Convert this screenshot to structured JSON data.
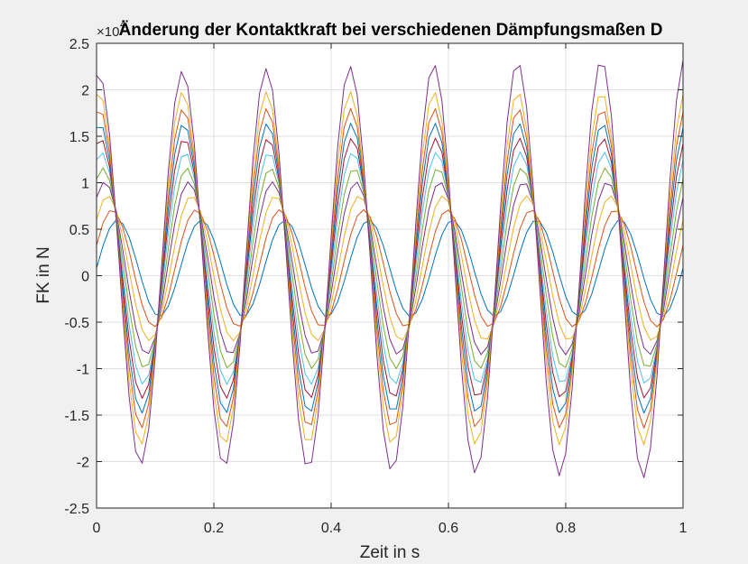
{
  "chart_data": {
    "type": "line",
    "title": "Änderung der Kontaktkraft bei verschiedenen Dämpfungsmaßen D",
    "xlabel": "Zeit in s",
    "ylabel": "FK in N",
    "exponent_label": "×10",
    "exponent_power": "4",
    "xlim": [
      0,
      1
    ],
    "ylim": [
      -25000,
      25000
    ],
    "xticks": [
      0,
      0.2,
      0.4,
      0.6,
      0.8,
      1
    ],
    "xtick_labels": [
      "0",
      "0.2",
      "0.4",
      "0.6",
      "0.8",
      "1"
    ],
    "yticks": [
      -25000,
      -20000,
      -15000,
      -10000,
      -5000,
      0,
      5000,
      10000,
      15000,
      20000,
      25000
    ],
    "ytick_labels": [
      "-2.5",
      "-2",
      "-1.5",
      "-1",
      "-0.5",
      "0",
      "0.5",
      "1",
      "1.5",
      "2",
      "2.5"
    ],
    "grid": true,
    "frequency_hz": 7,
    "sample_count": 91,
    "series": [
      {
        "color": "#0072BD",
        "mean": 800,
        "amplitude": 5200,
        "phase_deg": 0,
        "amp_growth": 0.0
      },
      {
        "color": "#D95319",
        "mean": 800,
        "amplitude": 6300,
        "phase_deg": 23,
        "amp_growth": 0.0
      },
      {
        "color": "#EDB120",
        "mean": 800,
        "amplitude": 7800,
        "phase_deg": 42,
        "amp_growth": 0.0
      },
      {
        "color": "#7E2F8E",
        "mean": 800,
        "amplitude": 9300,
        "phase_deg": 55,
        "amp_growth": 0.0
      },
      {
        "color": "#77AC30",
        "mean": 800,
        "amplitude": 10800,
        "phase_deg": 63,
        "amp_growth": 0.0
      },
      {
        "color": "#4DBEEE",
        "mean": 800,
        "amplitude": 12500,
        "phase_deg": 69,
        "amp_growth": 0.0
      },
      {
        "color": "#A2142F",
        "mean": 800,
        "amplitude": 14000,
        "phase_deg": 73,
        "amp_growth": 0.0
      },
      {
        "color": "#0072BD",
        "mean": 800,
        "amplitude": 15600,
        "phase_deg": 76,
        "amp_growth": 0.0
      },
      {
        "color": "#D95319",
        "mean": 800,
        "amplitude": 17200,
        "phase_deg": 78,
        "amp_growth": 0.0
      },
      {
        "color": "#EDB120",
        "mean": 800,
        "amplitude": 19000,
        "phase_deg": 80,
        "amp_growth": 0.0
      },
      {
        "color": "#7E2F8E",
        "mean": 800,
        "amplitude": 21000,
        "phase_deg": 81,
        "amp_growth": 0.08
      }
    ]
  }
}
